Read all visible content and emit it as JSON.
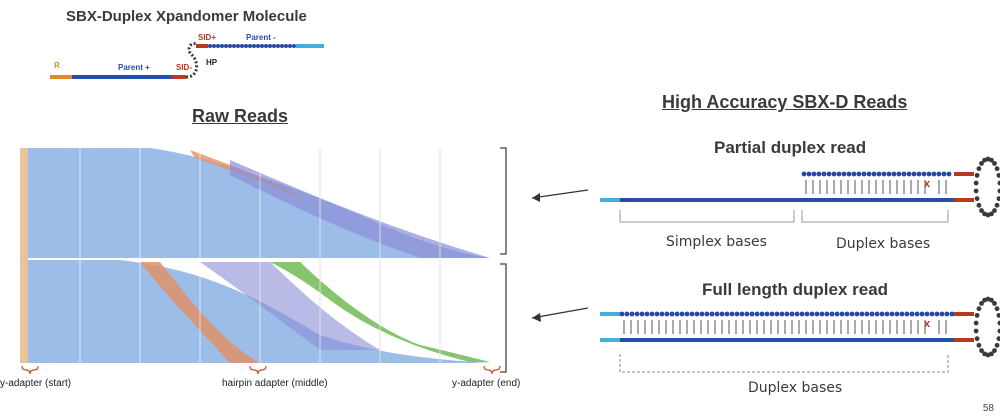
{
  "molecule": {
    "title": "SBX-Duplex Xpandomer Molecule",
    "labels": {
      "r": "R",
      "parent_plus": "Parent +",
      "sid_minus": "SID-",
      "hp": "HP",
      "sid_plus": "SID+",
      "parent_minus": "Parent -"
    }
  },
  "raw_reads": {
    "title": "Raw Reads",
    "axis_labels": {
      "start": "y-adapter (start)",
      "middle": "hairpin adapter (middle)",
      "end": "y-adapter (end)"
    }
  },
  "high_accuracy": {
    "title": "High Accuracy SBX-D Reads",
    "partial": {
      "title": "Partial duplex read",
      "simplex_label": "Simplex bases",
      "duplex_label": "Duplex bases",
      "mismatch": "x"
    },
    "full": {
      "title": "Full length duplex read",
      "duplex_label": "Duplex bases",
      "mismatch": "x"
    }
  },
  "colors": {
    "strand": "#2a4dab",
    "bead": "#2547a8",
    "adapter_light": "#43b0d8",
    "sid_red": "#b83a1e",
    "r_orange": "#e08a2a",
    "read_blue": "#8fb3e8",
    "read_purple": "#8a8ed6",
    "read_orange": "#e0926a",
    "read_green": "#86c46f"
  },
  "page_number": "58"
}
